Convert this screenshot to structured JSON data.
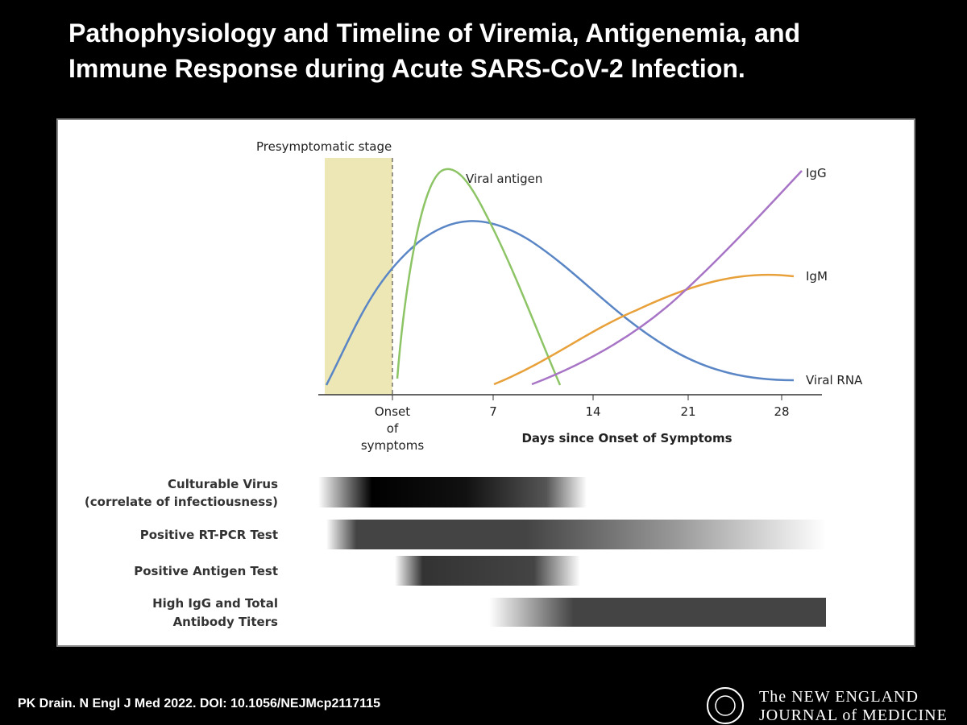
{
  "header": {
    "title_lines": [
      "Pathophysiology and Timeline of Viremia, Antigenemia, and",
      "Immune Response during Acute SARS-CoV-2 Infection."
    ]
  },
  "figure": {
    "stage_label": "Presymptomatic stage",
    "curve_labels": {
      "antigen": "Viral antigen",
      "igg": "IgG",
      "igm": "IgM",
      "rna": "Viral RNA"
    },
    "x_axis": {
      "onset_lines": [
        "Onset",
        "of",
        "symptoms"
      ],
      "ticks": [
        "7",
        "14",
        "21",
        "28"
      ],
      "title": "Days since Onset of Symptoms"
    },
    "bars": [
      {
        "label_lines": [
          "Culturable Virus",
          "(correlate of infectiousness)"
        ]
      },
      {
        "label_lines": [
          "Positive RT-PCR Test"
        ]
      },
      {
        "label_lines": [
          "Positive Antigen Test"
        ]
      },
      {
        "label_lines": [
          "High IgG and Total",
          "Antibody Titers"
        ]
      }
    ]
  },
  "footer": {
    "citation": "PK Drain. N Engl J Med 2022. DOI: 10.1056/NEJMcp2117115",
    "journal_lines": [
      "The NEW ENGLAND",
      "JOURNAL of MEDICINE"
    ]
  }
}
